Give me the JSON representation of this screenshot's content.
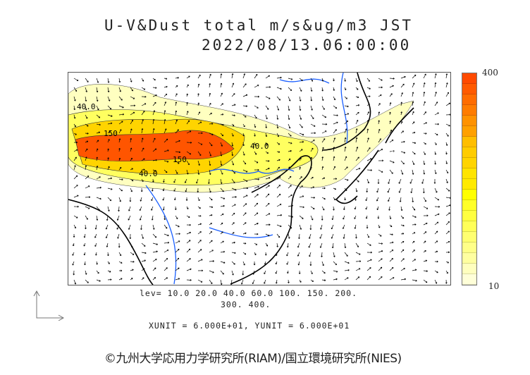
{
  "title": {
    "line1": "U-V&Dust total m/s&ug/m3 JST",
    "line2": "2022/08/13.06:00:00"
  },
  "colorbar": {
    "max_label": "400",
    "min_label": "10",
    "colors": [
      "#ff4a00",
      "#ff5a00",
      "#ff6c00",
      "#ff7c00",
      "#ff9200",
      "#ffa000",
      "#ffbe00",
      "#ffcc00",
      "#ffd400",
      "#ffe400",
      "#ffea00",
      "#ffff00",
      "#ffff28",
      "#ffff40",
      "#ffff58",
      "#ffff70",
      "#ffff88",
      "#ffffa0",
      "#ffffbe",
      "#ffffd8"
    ]
  },
  "contour_labels": [
    "150",
    "40.0",
    "40.0",
    "150",
    "40.0"
  ],
  "levels": {
    "line1": "lev= 10.0 20.0 40.0 60.0 100. 150. 200.",
    "line2": "300. 400."
  },
  "units": "XUNIT = 6.000E+01, YUNIT = 6.000E+01",
  "credit": "©九州大学応用力学研究所(RIAM)/国立環境研究所(NIES)"
}
